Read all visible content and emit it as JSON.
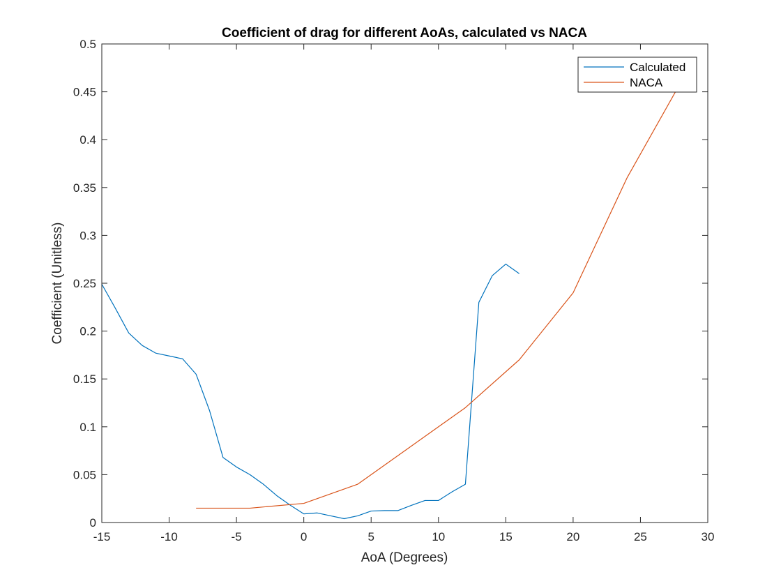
{
  "chart_data": {
    "type": "line",
    "title": "Coefficient of drag for different AoAs, calculated vs NACA",
    "xlabel": "AoA (Degrees)",
    "ylabel": "Coefficient (Unitless)",
    "xlim": [
      -15,
      30
    ],
    "ylim": [
      0,
      0.5
    ],
    "xticks": [
      -15,
      -10,
      -5,
      0,
      5,
      10,
      15,
      20,
      25,
      30
    ],
    "yticks": [
      0,
      0.05,
      0.1,
      0.15,
      0.2,
      0.25,
      0.3,
      0.35,
      0.4,
      0.45,
      0.5
    ],
    "grid": false,
    "legend_position": "top-right",
    "series": [
      {
        "name": "Calculated",
        "color": "#0072BD",
        "x": [
          -15,
          -14,
          -13,
          -12,
          -11,
          -10,
          -9,
          -8,
          -7,
          -6,
          -5,
          -4,
          -3,
          -2,
          -1,
          0,
          1,
          2,
          3,
          4,
          5,
          6,
          7,
          8,
          9,
          10,
          11,
          12,
          13,
          14,
          15,
          16
        ],
        "y": [
          0.249,
          0.224,
          0.198,
          0.185,
          0.177,
          0.174,
          0.171,
          0.155,
          0.117,
          0.068,
          0.058,
          0.05,
          0.04,
          0.028,
          0.018,
          0.009,
          0.01,
          0.007,
          0.004,
          0.007,
          0.012,
          0.0125,
          0.0125,
          0.018,
          0.023,
          0.023,
          0.032,
          0.04,
          0.23,
          0.258,
          0.27,
          0.26
        ]
      },
      {
        "name": "NACA",
        "color": "#D95319",
        "x": [
          -8,
          -4,
          0,
          4,
          8,
          12,
          16,
          20,
          24,
          28
        ],
        "y": [
          0.015,
          0.015,
          0.02,
          0.04,
          0.08,
          0.12,
          0.17,
          0.24,
          0.36,
          0.46
        ]
      }
    ]
  }
}
